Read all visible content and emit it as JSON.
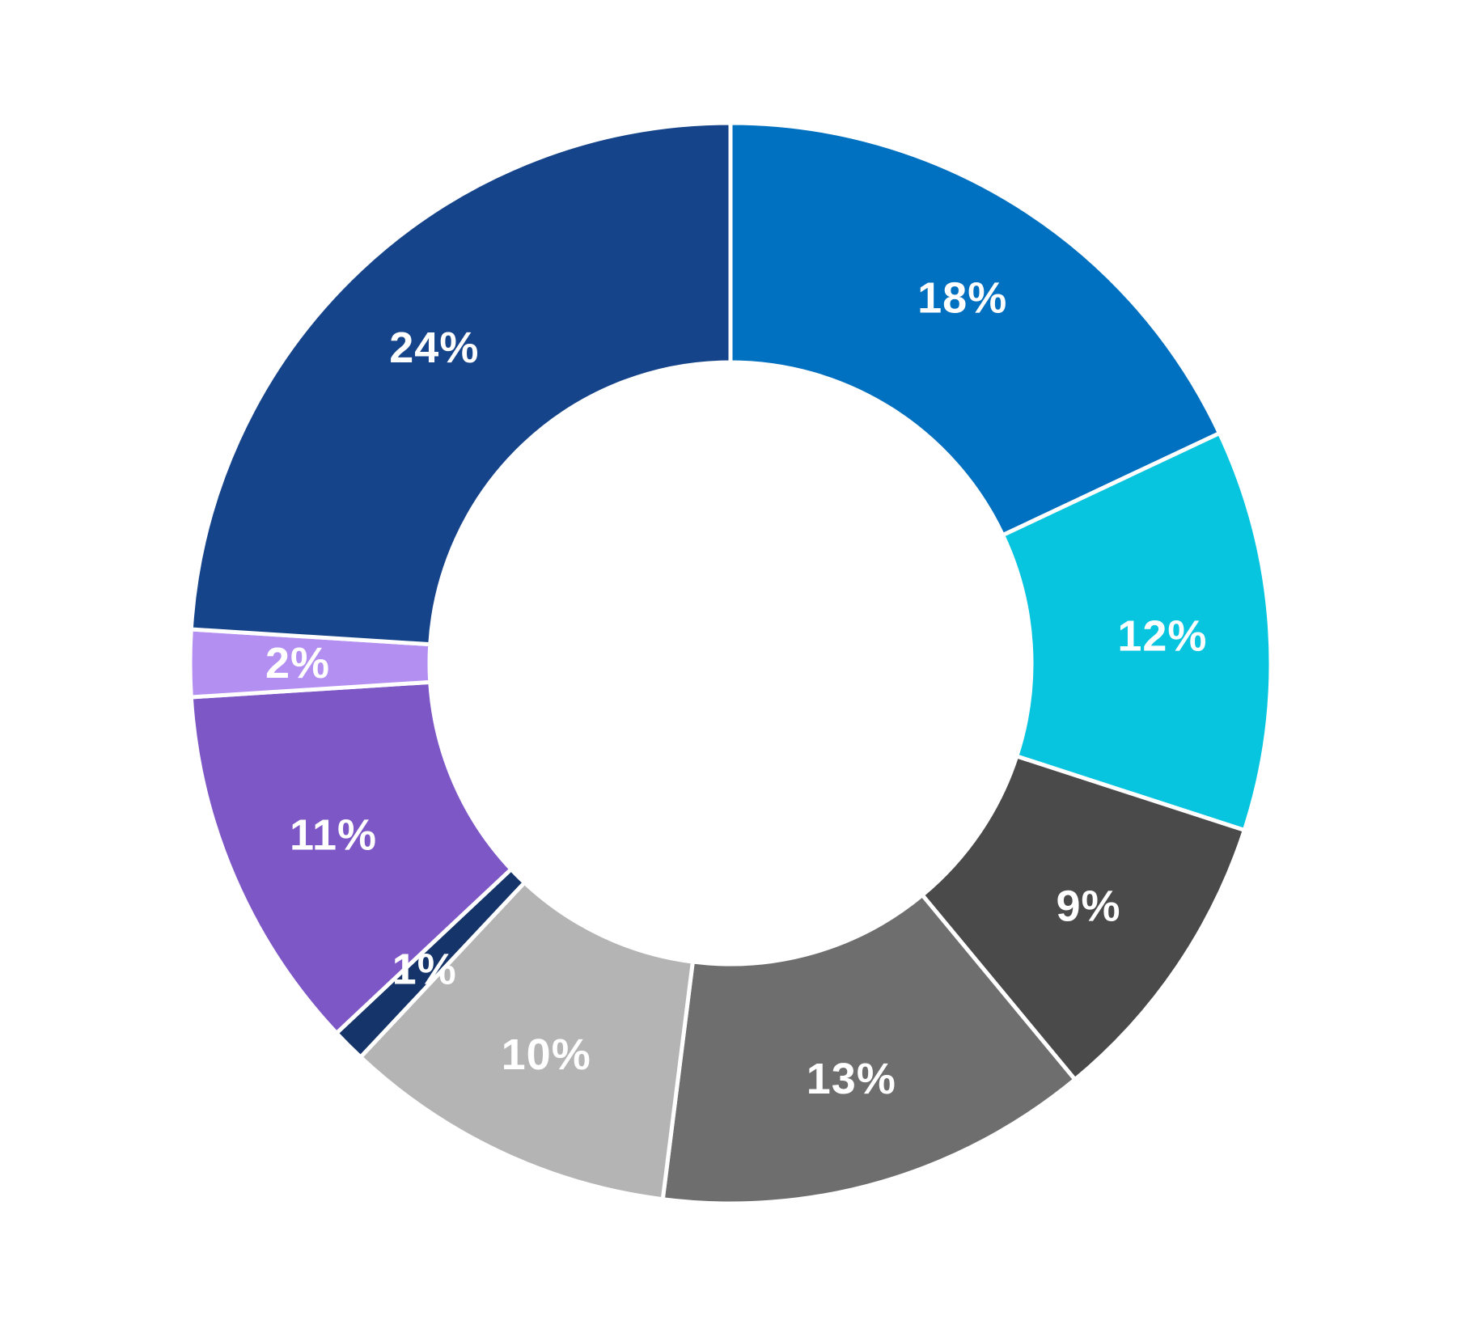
{
  "chart_data": {
    "type": "pie",
    "subtype": "donut",
    "title": "",
    "start_angle": "12 o'clock",
    "direction": "clockwise",
    "legend": "none",
    "slices": [
      {
        "label": "18%",
        "value": 18,
        "color": "#0070C0"
      },
      {
        "label": "12%",
        "value": 12,
        "color": "#07C4DF"
      },
      {
        "label": "9%",
        "value": 9,
        "color": "#4A4A4A"
      },
      {
        "label": "13%",
        "value": 13,
        "color": "#6E6E6E"
      },
      {
        "label": "10%",
        "value": 10,
        "color": "#B4B4B4"
      },
      {
        "label": "1%",
        "value": 1,
        "color": "#14346A"
      },
      {
        "label": "11%",
        "value": 11,
        "color": "#7E57C6"
      },
      {
        "label": "2%",
        "value": 2,
        "color": "#B48FF2"
      },
      {
        "label": "24%",
        "value": 24,
        "color": "#16448A"
      }
    ]
  }
}
